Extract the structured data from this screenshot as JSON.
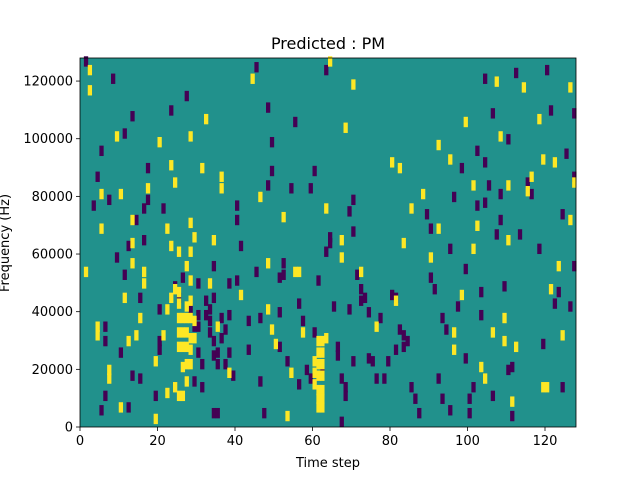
{
  "chart_data": {
    "type": "heatmap",
    "title": "Predicted : PM",
    "xlabel": "Time step",
    "ylabel": "Frequency (Hz)",
    "xlim": [
      0,
      128
    ],
    "ylim": [
      0,
      128000
    ],
    "x_ticks": [
      0,
      20,
      40,
      60,
      80,
      100,
      120
    ],
    "x_tick_labels": [
      "0",
      "20",
      "40",
      "60",
      "80",
      "100",
      "120"
    ],
    "y_ticks": [
      0,
      20000,
      40000,
      60000,
      80000,
      100000,
      120000
    ],
    "y_tick_labels": [
      "0",
      "20000",
      "40000",
      "60000",
      "80000",
      "100000",
      "120000"
    ],
    "grid": false,
    "legend": "none",
    "colormap": "viridis",
    "values_meaning": "class value per time step / frequency cell: 0 = dark purple, 1 = teal background, 2 = yellow",
    "background_value": 1,
    "colors": {
      "0": "#440154",
      "1": "#21918c",
      "2": "#fde725"
    },
    "cells_yellow": [
      [
        1,
        53000
      ],
      [
        2,
        123000
      ],
      [
        2,
        116000
      ],
      [
        4,
        34000
      ],
      [
        4,
        31000
      ],
      [
        5,
        80000
      ],
      [
        5,
        68000
      ],
      [
        7,
        19000
      ],
      [
        7,
        16000
      ],
      [
        9,
        100000
      ],
      [
        10,
        80000
      ],
      [
        10,
        6000
      ],
      [
        11,
        44000
      ],
      [
        12,
        29000
      ],
      [
        13,
        71000
      ],
      [
        13,
        63000
      ],
      [
        13,
        56000
      ],
      [
        14,
        31000
      ],
      [
        15,
        37000
      ],
      [
        16,
        49000
      ],
      [
        16,
        53000
      ],
      [
        17,
        82000
      ],
      [
        19,
        22000
      ],
      [
        19,
        2000
      ],
      [
        20,
        98000
      ],
      [
        21,
        31000
      ],
      [
        22,
        11000
      ],
      [
        22,
        40000
      ],
      [
        22,
        68000
      ],
      [
        23,
        44000
      ],
      [
        23,
        62000
      ],
      [
        23,
        90000
      ],
      [
        24,
        47000
      ],
      [
        24,
        84000
      ],
      [
        24,
        13000
      ],
      [
        25,
        60000
      ],
      [
        25,
        46000
      ],
      [
        25,
        42000
      ],
      [
        25,
        37000
      ],
      [
        25,
        32000
      ],
      [
        25,
        27000
      ],
      [
        25,
        10000
      ],
      [
        26,
        37000
      ],
      [
        26,
        32000
      ],
      [
        26,
        27000
      ],
      [
        26,
        20000
      ],
      [
        26,
        10000
      ],
      [
        27,
        55000
      ],
      [
        27,
        41000
      ],
      [
        27,
        37000
      ],
      [
        27,
        32000
      ],
      [
        27,
        27000
      ],
      [
        27,
        21000
      ],
      [
        27,
        15000
      ],
      [
        28,
        70000
      ],
      [
        28,
        100000
      ],
      [
        28,
        60000
      ],
      [
        28,
        50000
      ],
      [
        28,
        43000
      ],
      [
        28,
        37000
      ],
      [
        28,
        30000
      ],
      [
        28,
        26000
      ],
      [
        28,
        21000
      ],
      [
        29,
        65000
      ],
      [
        29,
        36000
      ],
      [
        29,
        30000
      ],
      [
        31,
        89000
      ],
      [
        32,
        106000
      ],
      [
        33,
        49000
      ],
      [
        34,
        64000
      ],
      [
        35,
        34000
      ],
      [
        36,
        86000
      ],
      [
        36,
        82000
      ],
      [
        38,
        18000
      ],
      [
        41,
        45000
      ],
      [
        44,
        120000
      ],
      [
        46,
        79000
      ],
      [
        48,
        56000
      ],
      [
        48,
        40000
      ],
      [
        49,
        33000
      ],
      [
        50,
        28000
      ],
      [
        52,
        72000
      ],
      [
        53,
        3000
      ],
      [
        54,
        18000
      ],
      [
        55,
        53000
      ],
      [
        56,
        53000
      ],
      [
        57,
        32000
      ],
      [
        60,
        22000
      ],
      [
        60,
        18000
      ],
      [
        60,
        14000
      ],
      [
        61,
        29000
      ],
      [
        61,
        25000
      ],
      [
        61,
        21000
      ],
      [
        61,
        17000
      ],
      [
        61,
        12000
      ],
      [
        61,
        9000
      ],
      [
        61,
        6000
      ],
      [
        62,
        29000
      ],
      [
        62,
        25000
      ],
      [
        62,
        21000
      ],
      [
        62,
        17000
      ],
      [
        62,
        12000
      ],
      [
        62,
        9000
      ],
      [
        62,
        6000
      ],
      [
        63,
        30000
      ],
      [
        63,
        75000
      ],
      [
        64,
        126000
      ],
      [
        67,
        64000
      ],
      [
        67,
        58000
      ],
      [
        68,
        103000
      ],
      [
        70,
        118000
      ],
      [
        72,
        53000
      ],
      [
        76,
        34000
      ],
      [
        80,
        91000
      ],
      [
        81,
        43000
      ],
      [
        82,
        89000
      ],
      [
        83,
        63000
      ],
      [
        85,
        75000
      ],
      [
        88,
        80000
      ],
      [
        90,
        58000
      ],
      [
        92,
        97000
      ],
      [
        92,
        68000
      ],
      [
        95,
        92000
      ],
      [
        96,
        32000
      ],
      [
        96,
        26000
      ],
      [
        98,
        45000
      ],
      [
        99,
        105000
      ],
      [
        101,
        83000
      ],
      [
        101,
        61000
      ],
      [
        102,
        69000
      ],
      [
        103,
        20000
      ],
      [
        104,
        16000
      ],
      [
        106,
        32000
      ],
      [
        107,
        119000
      ],
      [
        108,
        100000
      ],
      [
        109,
        37000
      ],
      [
        109,
        29000
      ],
      [
        110,
        83000
      ],
      [
        110,
        64000
      ],
      [
        111,
        8000
      ],
      [
        112,
        27000
      ],
      [
        114,
        117000
      ],
      [
        115,
        81000
      ],
      [
        116,
        86000
      ],
      [
        118,
        106000
      ],
      [
        119,
        92000
      ],
      [
        119,
        13000
      ],
      [
        120,
        13000
      ],
      [
        121,
        47000
      ],
      [
        122,
        91000
      ],
      [
        123,
        55000
      ],
      [
        124,
        31000
      ],
      [
        126,
        117000
      ],
      [
        126,
        71000
      ],
      [
        127,
        84000
      ]
    ],
    "cells_purple": [
      [
        1,
        126000
      ],
      [
        3,
        76000
      ],
      [
        4,
        86000
      ],
      [
        5,
        95000
      ],
      [
        5,
        5000
      ],
      [
        6,
        34000
      ],
      [
        6,
        29000
      ],
      [
        6,
        10000
      ],
      [
        7,
        78000
      ],
      [
        8,
        120000
      ],
      [
        9,
        58000
      ],
      [
        10,
        25000
      ],
      [
        11,
        101000
      ],
      [
        11,
        52000
      ],
      [
        12,
        62000
      ],
      [
        12,
        6000
      ],
      [
        13,
        107000
      ],
      [
        13,
        17000
      ],
      [
        14,
        71000
      ],
      [
        15,
        16000
      ],
      [
        15,
        44000
      ],
      [
        16,
        64000
      ],
      [
        16,
        75000
      ],
      [
        17,
        89000
      ],
      [
        17,
        78000
      ],
      [
        19,
        10000
      ],
      [
        20,
        40000
      ],
      [
        20,
        29000
      ],
      [
        20,
        26000
      ],
      [
        21,
        75000
      ],
      [
        23,
        109000
      ],
      [
        24,
        48000
      ],
      [
        25,
        44000
      ],
      [
        26,
        51000
      ],
      [
        27,
        114000
      ],
      [
        28,
        40000
      ],
      [
        29,
        34000
      ],
      [
        29,
        15000
      ],
      [
        30,
        49000
      ],
      [
        30,
        38000
      ],
      [
        30,
        34000
      ],
      [
        30,
        25000
      ],
      [
        31,
        21000
      ],
      [
        31,
        13000
      ],
      [
        32,
        43000
      ],
      [
        32,
        38000
      ],
      [
        33,
        40000
      ],
      [
        33,
        36000
      ],
      [
        33,
        32000
      ],
      [
        34,
        55000
      ],
      [
        34,
        44000
      ],
      [
        34,
        29000
      ],
      [
        34,
        24000
      ],
      [
        34,
        4000
      ],
      [
        35,
        4000
      ],
      [
        35,
        25000
      ],
      [
        35,
        21000
      ],
      [
        36,
        37000
      ],
      [
        36,
        30000
      ],
      [
        37,
        21000
      ],
      [
        37,
        33000
      ],
      [
        38,
        38000
      ],
      [
        38,
        49000
      ],
      [
        38,
        25000
      ],
      [
        39,
        17000
      ],
      [
        40,
        50000
      ],
      [
        40,
        76000
      ],
      [
        40,
        71000
      ],
      [
        41,
        62000
      ],
      [
        43,
        36000
      ],
      [
        43,
        26000
      ],
      [
        45,
        124000
      ],
      [
        45,
        53000
      ],
      [
        46,
        15000
      ],
      [
        46,
        37000
      ],
      [
        47,
        4000
      ],
      [
        48,
        110000
      ],
      [
        48,
        83000
      ],
      [
        49,
        98000
      ],
      [
        49,
        88000
      ],
      [
        51,
        51000
      ],
      [
        51,
        39000
      ],
      [
        51,
        27000
      ],
      [
        52,
        56000
      ],
      [
        52,
        52000
      ],
      [
        53,
        22000
      ],
      [
        54,
        82000
      ],
      [
        55,
        105000
      ],
      [
        56,
        14000
      ],
      [
        56,
        42000
      ],
      [
        57,
        36000
      ],
      [
        58,
        19000
      ],
      [
        59,
        16000
      ],
      [
        59,
        82000
      ],
      [
        60,
        88000
      ],
      [
        60,
        32000
      ],
      [
        61,
        50000
      ],
      [
        62,
        18000
      ],
      [
        63,
        123000
      ],
      [
        63,
        60000
      ],
      [
        64,
        63000
      ],
      [
        64,
        65000
      ],
      [
        65,
        41000
      ],
      [
        66,
        27000
      ],
      [
        66,
        24000
      ],
      [
        67,
        16000
      ],
      [
        67,
        1000
      ],
      [
        68,
        13000
      ],
      [
        68,
        10000
      ],
      [
        69,
        40000
      ],
      [
        69,
        74000
      ],
      [
        70,
        22000
      ],
      [
        70,
        78000
      ],
      [
        70,
        67000
      ],
      [
        71,
        52000
      ],
      [
        72,
        47000
      ],
      [
        72,
        43000
      ],
      [
        73,
        44000
      ],
      [
        74,
        39000
      ],
      [
        74,
        23000
      ],
      [
        75,
        22000
      ],
      [
        76,
        16000
      ],
      [
        77,
        37000
      ],
      [
        78,
        16000
      ],
      [
        79,
        22000
      ],
      [
        80,
        45000
      ],
      [
        81,
        44000
      ],
      [
        81,
        26000
      ],
      [
        82,
        33000
      ],
      [
        83,
        31000
      ],
      [
        83,
        27000
      ],
      [
        84,
        29000
      ],
      [
        85,
        13000
      ],
      [
        86,
        9000
      ],
      [
        87,
        4000
      ],
      [
        89,
        73000
      ],
      [
        90,
        68000
      ],
      [
        90,
        51000
      ],
      [
        91,
        47000
      ],
      [
        92,
        16000
      ],
      [
        93,
        37000
      ],
      [
        93,
        9000
      ],
      [
        94,
        33000
      ],
      [
        95,
        61000
      ],
      [
        95,
        5000
      ],
      [
        96,
        79000
      ],
      [
        97,
        41000
      ],
      [
        98,
        89000
      ],
      [
        99,
        54000
      ],
      [
        99,
        23000
      ],
      [
        100,
        9000
      ],
      [
        100,
        4000
      ],
      [
        101,
        13000
      ],
      [
        102,
        95000
      ],
      [
        102,
        76000
      ],
      [
        103,
        46000
      ],
      [
        103,
        38000
      ],
      [
        104,
        120000
      ],
      [
        104,
        91000
      ],
      [
        104,
        77000
      ],
      [
        105,
        83000
      ],
      [
        106,
        108000
      ],
      [
        106,
        10000
      ],
      [
        107,
        66000
      ],
      [
        108,
        80000
      ],
      [
        108,
        71000
      ],
      [
        109,
        48000
      ],
      [
        110,
        99000
      ],
      [
        110,
        19000
      ],
      [
        111,
        20000
      ],
      [
        111,
        3000
      ],
      [
        112,
        122000
      ],
      [
        113,
        66000
      ],
      [
        115,
        84000
      ],
      [
        116,
        80000
      ],
      [
        118,
        61000
      ],
      [
        119,
        28000
      ],
      [
        120,
        123000
      ],
      [
        121,
        109000
      ],
      [
        122,
        42000
      ],
      [
        123,
        46000
      ],
      [
        124,
        73000
      ],
      [
        124,
        13000
      ],
      [
        125,
        94000
      ],
      [
        126,
        41000
      ],
      [
        127,
        55000
      ],
      [
        127,
        86000
      ],
      [
        127,
        108000
      ]
    ]
  }
}
